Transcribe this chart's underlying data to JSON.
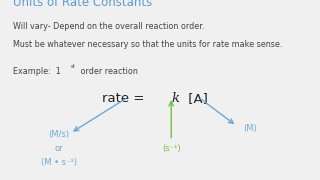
{
  "bg_color": "#f0f0f0",
  "title": "Units of Rate Constants",
  "title_color": "#5b9bd5",
  "title_fontsize": 8.5,
  "line1": "Will vary- Depend on the overall reaction order.",
  "line2": "Must be whatever necessary so that the units for rate make sense.",
  "body_fontsize": 5.8,
  "arrow_color_blue": "#6aaad4",
  "arrow_color_green": "#70c040",
  "rate_eq_fontsize": 9.5,
  "label_fontsize": 6.0
}
